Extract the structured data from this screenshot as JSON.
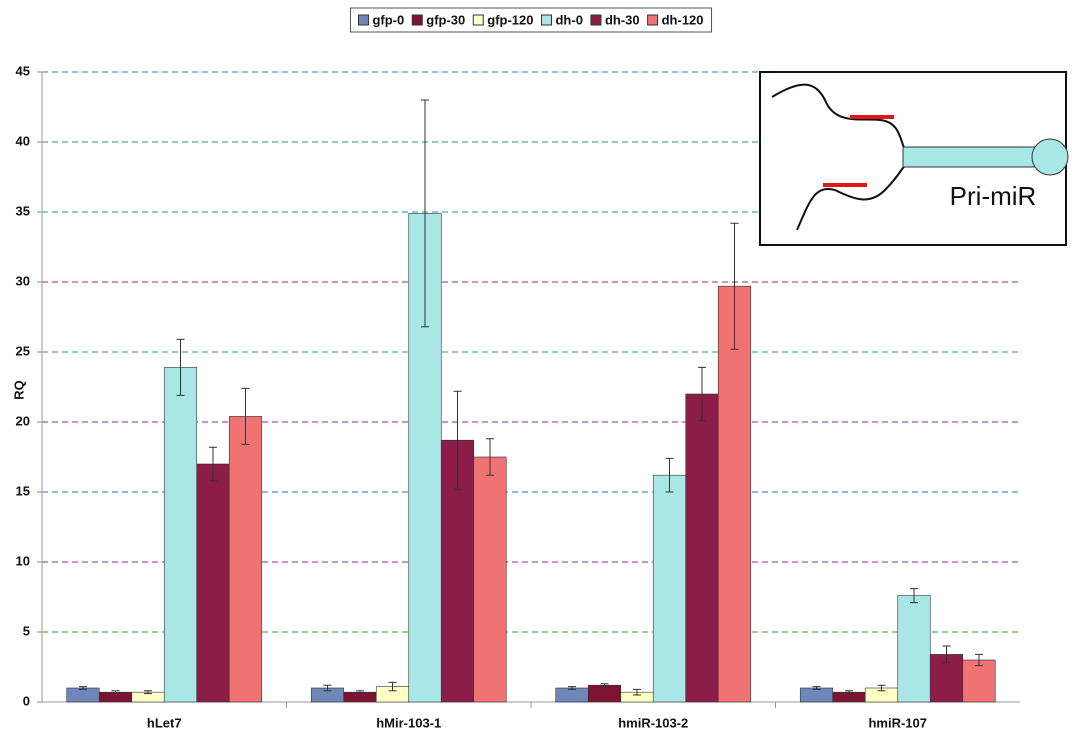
{
  "chart_data": {
    "type": "bar",
    "categories": [
      "hLet7",
      "hMir-103-1",
      "hmiR-103-2",
      "hmiR-107"
    ],
    "y_label": "RQ",
    "annotation": "Pri-miR",
    "ylim": [
      0,
      45
    ],
    "yticks": [
      0,
      5,
      10,
      15,
      20,
      25,
      30,
      35,
      40,
      45
    ],
    "grid": true,
    "grid_colors": [
      "#3a9a3a",
      "#8a2aa0",
      "#2a7ad0",
      "#8a2aa0",
      "#2aa06a",
      "#a02a7a",
      "#2a9a9a",
      "#2a9a5a",
      "#2a7ad0"
    ],
    "legend": "top",
    "series": [
      {
        "name": "gfp-0",
        "color": "#6f86b8",
        "values": [
          1.0,
          1.0,
          1.0,
          1.0
        ],
        "errors": [
          0.1,
          0.2,
          0.1,
          0.1
        ]
      },
      {
        "name": "gfp-30",
        "color": "#7e1432",
        "values": [
          0.7,
          0.7,
          1.2,
          0.7
        ],
        "errors": [
          0.1,
          0.1,
          0.1,
          0.1
        ]
      },
      {
        "name": "gfp-120",
        "color": "#ffffc6",
        "values": [
          0.7,
          1.1,
          0.7,
          1.0
        ],
        "errors": [
          0.1,
          0.3,
          0.2,
          0.2
        ]
      },
      {
        "name": "dh-0",
        "color": "#a9e6e6",
        "values": [
          23.9,
          34.9,
          16.2,
          7.6
        ],
        "errors": [
          2.0,
          8.1,
          1.2,
          0.5
        ]
      },
      {
        "name": "dh-30",
        "color": "#8c1c48",
        "values": [
          17.0,
          18.7,
          22.0,
          3.4
        ],
        "errors": [
          1.2,
          3.5,
          1.9,
          0.6
        ]
      },
      {
        "name": "dh-120",
        "color": "#f07272",
        "values": [
          20.4,
          17.5,
          29.7,
          3.0
        ],
        "errors": [
          2.0,
          1.3,
          4.5,
          0.4
        ]
      }
    ]
  }
}
